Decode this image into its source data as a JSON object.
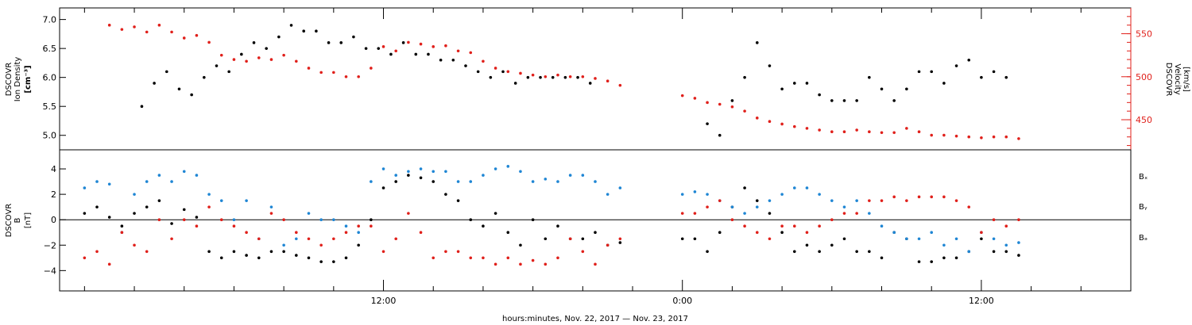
{
  "chart_data": [
    {
      "type": "scatter",
      "panel": "top",
      "ylabel_lines": [
        "DSCOVR",
        "Ion Density",
        "[cm⁻³]"
      ],
      "y2label_lines": [
        "DSCOVR",
        "Velocity",
        "[km/s]"
      ],
      "ylim": [
        4.75,
        7.2
      ],
      "y2lim": [
        415,
        580
      ],
      "yticks": [
        5.0,
        5.5,
        6.0,
        6.5,
        7.0
      ],
      "ytick_labels": [
        "5.0",
        "5.5",
        "6.0",
        "6.5",
        "7.0"
      ],
      "y2ticks": [
        450,
        500,
        550
      ],
      "y2tick_labels": [
        "450",
        "500",
        "550"
      ],
      "axis_colors": {
        "left": "#000000",
        "right": "#e0201b"
      },
      "series": [
        {
          "color": "#000000",
          "axis": "left",
          "x": [
            2.3,
            2.8,
            3.3,
            3.8,
            4.3,
            4.8,
            5.3,
            5.8,
            6.3,
            6.8,
            7.3,
            7.8,
            8.3,
            8.8,
            9.3,
            9.8,
            10.3,
            10.8,
            11.3,
            11.8,
            12.3,
            12.8,
            13.3,
            13.8,
            14.3,
            14.8,
            15.3,
            15.8,
            16.3,
            16.8,
            17.3,
            17.8,
            18.3,
            18.8,
            19.3,
            19.8,
            20.3,
            25.0,
            25.5,
            26.0,
            26.5,
            27.0,
            27.5,
            28.0,
            28.5,
            29.0,
            29.5,
            30.0,
            30.5,
            31.0,
            31.5,
            32.0,
            32.5,
            33.0,
            33.5,
            34.0,
            34.5,
            35.0,
            35.5,
            36.0,
            36.5,
            37.0
          ],
          "values": [
            5.5,
            5.9,
            6.1,
            5.8,
            5.7,
            6.0,
            6.2,
            6.1,
            6.4,
            6.6,
            6.5,
            6.7,
            6.9,
            6.8,
            6.8,
            6.6,
            6.6,
            6.7,
            6.5,
            6.5,
            6.4,
            6.6,
            6.4,
            6.4,
            6.3,
            6.3,
            6.2,
            6.1,
            6.0,
            6.1,
            5.9,
            6.0,
            6.0,
            6.0,
            6.0,
            6.0,
            5.9,
            5.2,
            5.0,
            5.6,
            6.0,
            6.6,
            6.2,
            5.8,
            5.9,
            5.9,
            5.7,
            5.6,
            5.6,
            5.6,
            6.0,
            5.8,
            5.6,
            5.8,
            6.1,
            6.1,
            5.9,
            6.2,
            6.3,
            6.0,
            6.1,
            6.0
          ]
        },
        {
          "color": "#e0201b",
          "axis": "right",
          "x": [
            1.0,
            1.5,
            2.0,
            2.5,
            3.0,
            3.5,
            4.0,
            4.5,
            5.0,
            5.5,
            6.0,
            6.5,
            7.0,
            7.5,
            8.0,
            8.5,
            9.0,
            9.5,
            10.0,
            10.5,
            11.0,
            11.5,
            12.0,
            12.5,
            13.0,
            13.5,
            14.0,
            14.5,
            15.0,
            15.5,
            16.0,
            16.5,
            17.0,
            17.5,
            18.0,
            18.5,
            19.0,
            19.5,
            20.0,
            20.5,
            21.0,
            21.5,
            24.0,
            24.5,
            25.0,
            25.5,
            26.0,
            26.5,
            27.0,
            27.5,
            28.0,
            28.5,
            29.0,
            29.5,
            30.0,
            30.5,
            31.0,
            31.5,
            32.0,
            32.5,
            33.0,
            33.5,
            34.0,
            34.5,
            35.0,
            35.5,
            36.0,
            36.5,
            37.0,
            37.5
          ],
          "values": [
            560,
            555,
            558,
            552,
            560,
            552,
            545,
            548,
            540,
            525,
            520,
            518,
            522,
            520,
            525,
            518,
            510,
            505,
            505,
            500,
            500,
            510,
            535,
            530,
            540,
            538,
            535,
            536,
            530,
            528,
            518,
            510,
            506,
            504,
            502,
            500,
            502,
            500,
            500,
            498,
            495,
            490,
            478,
            475,
            470,
            468,
            465,
            460,
            452,
            448,
            445,
            442,
            440,
            438,
            436,
            436,
            438,
            436,
            435,
            435,
            440,
            436,
            432,
            432,
            431,
            430,
            429,
            430,
            430,
            428
          ]
        }
      ]
    },
    {
      "type": "scatter",
      "panel": "bottom",
      "ylabel_lines": [
        "DSCOVR",
        "B",
        "[nT]"
      ],
      "ylim": [
        -5.6,
        5.5
      ],
      "yticks": [
        -4,
        -2,
        0,
        2,
        4
      ],
      "ytick_labels": [
        "−4",
        "−2",
        "0",
        "2",
        "4"
      ],
      "zero_line": true,
      "series": [
        {
          "name": "Bₓ",
          "color": "#000000",
          "x": [
            0.0,
            0.5,
            1.0,
            1.5,
            2.0,
            2.5,
            3.0,
            3.5,
            4.0,
            4.5,
            5.0,
            5.5,
            6.0,
            6.5,
            7.0,
            7.5,
            8.0,
            8.5,
            9.0,
            9.5,
            10.0,
            10.5,
            11.0,
            11.5,
            12.0,
            12.5,
            13.0,
            13.5,
            14.0,
            14.5,
            15.0,
            15.5,
            16.0,
            16.5,
            17.0,
            17.5,
            18.0,
            18.5,
            19.0,
            19.5,
            20.0,
            20.5,
            21.0,
            21.5,
            24.0,
            24.5,
            25.0,
            25.5,
            26.0,
            26.5,
            27.0,
            27.5,
            28.0,
            28.5,
            29.0,
            29.5,
            30.0,
            30.5,
            31.0,
            31.5,
            32.0,
            32.5,
            33.0,
            33.5,
            34.0,
            34.5,
            35.0,
            35.5,
            36.0,
            36.5,
            37.0,
            37.5
          ],
          "values": [
            0.5,
            1.0,
            0.2,
            -0.5,
            0.5,
            1.0,
            1.5,
            -0.3,
            0.8,
            0.2,
            -2.5,
            -3.0,
            -2.5,
            -2.8,
            -3.0,
            -2.5,
            -2.5,
            -2.8,
            -3.0,
            -3.3,
            -3.3,
            -3.0,
            -2.0,
            0.0,
            2.5,
            3.0,
            3.5,
            3.3,
            3.0,
            2.0,
            1.5,
            0.0,
            -0.5,
            0.5,
            -1.0,
            -2.0,
            0.0,
            -1.5,
            -0.5,
            -1.5,
            -1.5,
            -1.0,
            -2.0,
            -1.8,
            -1.5,
            -1.5,
            -2.5,
            -1.0,
            1.0,
            2.5,
            1.5,
            0.5,
            -1.0,
            -2.5,
            -2.0,
            -2.5,
            -2.0,
            -1.5,
            -2.5,
            -2.5,
            -3.0,
            -1.0,
            -1.5,
            -3.3,
            -3.3,
            -3.0,
            -3.0,
            -2.5,
            -1.5,
            -2.5,
            -2.5,
            -2.8
          ]
        },
        {
          "name": "Bᵧ",
          "color": "#1f86d4",
          "x": [
            0.0,
            0.5,
            1.0,
            1.5,
            2.0,
            2.5,
            3.0,
            3.5,
            4.0,
            4.5,
            5.0,
            5.5,
            6.0,
            6.5,
            7.0,
            7.5,
            8.0,
            8.5,
            9.0,
            9.5,
            10.0,
            10.5,
            11.0,
            11.5,
            12.0,
            12.5,
            13.0,
            13.5,
            14.0,
            14.5,
            15.0,
            15.5,
            16.0,
            16.5,
            17.0,
            17.5,
            18.0,
            18.5,
            19.0,
            19.5,
            20.0,
            20.5,
            21.0,
            21.5,
            24.0,
            24.5,
            25.0,
            25.5,
            26.0,
            26.5,
            27.0,
            27.5,
            28.0,
            28.5,
            29.0,
            29.5,
            30.0,
            30.5,
            31.0,
            31.5,
            32.0,
            32.5,
            33.0,
            33.5,
            34.0,
            34.5,
            35.0,
            35.5,
            36.0,
            36.5,
            37.0,
            37.5
          ],
          "values": [
            2.5,
            3.0,
            2.8,
            -1.0,
            2.0,
            3.0,
            3.5,
            3.0,
            3.8,
            3.5,
            2.0,
            1.5,
            0.0,
            1.5,
            -1.5,
            1.0,
            -2.0,
            -1.5,
            0.5,
            0.0,
            0.0,
            -0.5,
            -1.0,
            3.0,
            4.0,
            3.5,
            3.8,
            4.0,
            3.8,
            3.8,
            3.0,
            3.0,
            3.5,
            4.0,
            4.2,
            3.8,
            3.0,
            3.2,
            3.0,
            3.5,
            3.5,
            3.0,
            2.0,
            2.5,
            2.0,
            2.2,
            2.0,
            1.5,
            1.0,
            0.5,
            1.0,
            1.5,
            2.0,
            2.5,
            2.5,
            2.0,
            1.5,
            1.0,
            1.5,
            0.5,
            -0.5,
            -1.0,
            -1.5,
            -1.5,
            -1.0,
            -2.0,
            -1.5,
            -2.5,
            -1.0,
            -1.5,
            -2.0,
            -1.8
          ]
        },
        {
          "name": "Bₔ",
          "color": "#e0201b",
          "x": [
            0.0,
            0.5,
            1.0,
            1.5,
            2.0,
            2.5,
            3.0,
            3.5,
            4.0,
            4.5,
            5.0,
            5.5,
            6.0,
            6.5,
            7.0,
            7.5,
            8.0,
            8.5,
            9.0,
            9.5,
            10.0,
            10.5,
            11.0,
            11.5,
            12.0,
            12.5,
            13.0,
            13.5,
            14.0,
            14.5,
            15.0,
            15.5,
            16.0,
            16.5,
            17.0,
            17.5,
            18.0,
            18.5,
            19.0,
            19.5,
            20.0,
            20.5,
            21.0,
            21.5,
            24.0,
            24.5,
            25.0,
            25.5,
            26.0,
            26.5,
            27.0,
            27.5,
            28.0,
            28.5,
            29.0,
            29.5,
            30.0,
            30.5,
            31.0,
            31.5,
            32.0,
            32.5,
            33.0,
            33.5,
            34.0,
            34.5,
            35.0,
            35.5,
            36.0,
            36.5,
            37.0,
            37.5
          ],
          "values": [
            -3.0,
            -2.5,
            -3.5,
            -1.0,
            -2.0,
            -2.5,
            0.0,
            -1.5,
            0.0,
            -0.5,
            1.0,
            0.0,
            -0.5,
            -1.0,
            -1.5,
            0.5,
            0.0,
            -1.0,
            -1.5,
            -2.0,
            -1.5,
            -1.0,
            -0.5,
            -0.5,
            -2.5,
            -1.5,
            0.5,
            -1.0,
            -3.0,
            -2.5,
            -2.5,
            -3.0,
            -3.0,
            -3.5,
            -3.0,
            -3.5,
            -3.2,
            -3.5,
            -3.0,
            -1.5,
            -2.5,
            -3.5,
            -2.0,
            -1.5,
            0.5,
            0.5,
            1.0,
            1.5,
            0.0,
            -0.5,
            -1.0,
            -1.5,
            -0.5,
            -0.5,
            -1.0,
            -0.5,
            0.0,
            0.5,
            0.5,
            1.5,
            1.5,
            1.8,
            1.5,
            1.8,
            1.8,
            1.8,
            1.5,
            1.0,
            -1.0,
            0.0,
            -0.5,
            0.0
          ]
        }
      ]
    }
  ],
  "x_axis": {
    "title": "hours:minutes, Nov. 22, 2017 — Nov. 23, 2017",
    "xlim": [
      -1.0,
      42.0
    ],
    "ticks": [
      12,
      24,
      36
    ],
    "tick_labels": [
      "12:00",
      "0:00",
      "12:00"
    ],
    "minor_every_hours": 2
  }
}
